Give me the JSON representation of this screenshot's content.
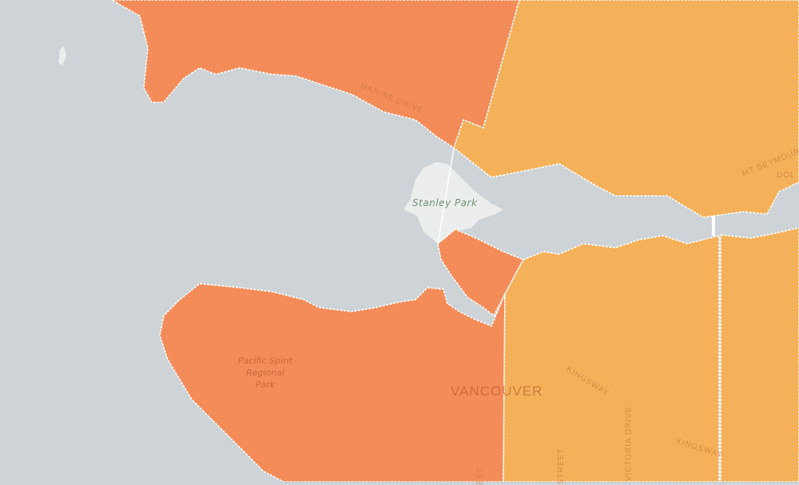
{
  "colors": {
    "water": "#cdd3d6",
    "zone_high": "#f48c5a",
    "zone_mid": "#f4b15a",
    "park": "#eceeed"
  },
  "labels": {
    "stanley_park": "Stanley Park",
    "pacific_spirit": [
      "Pacific Spirit",
      "Regional",
      "Park"
    ],
    "city": "VANCOUVER",
    "marine_drive": "MARINE DRIVE",
    "mt_seymour": "MT SEYMOUR P",
    "dollarton": "DOL",
    "kingsway_1": "KINGSWAY",
    "kingsway_2": "KINGSWAY",
    "victoria_drive": "VICTORIA DRIVE",
    "street_1": "STREET",
    "street_2": "EET"
  }
}
